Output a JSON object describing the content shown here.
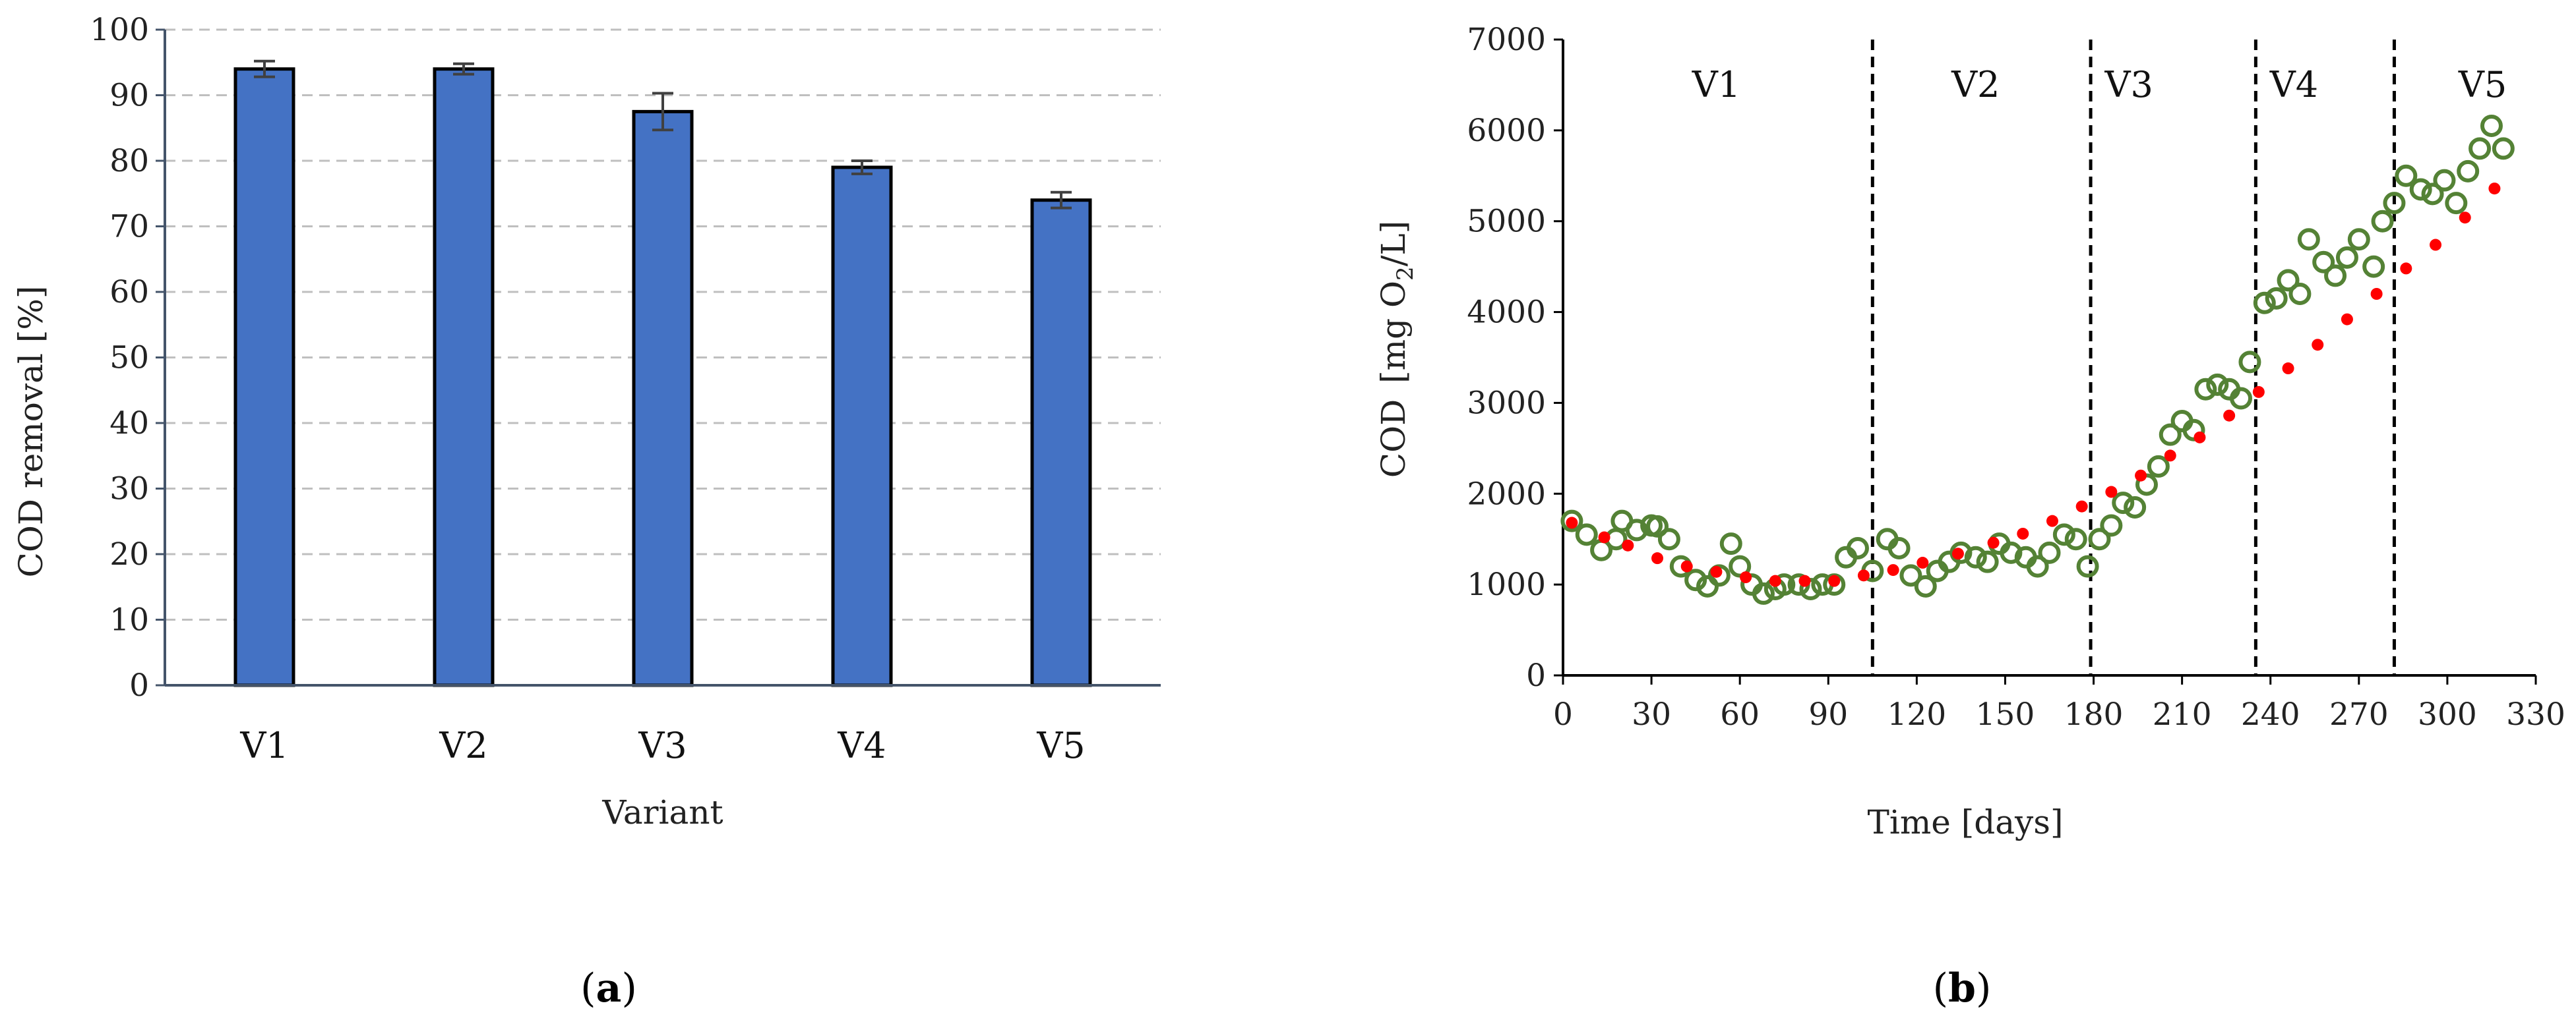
{
  "panels": {
    "a": {
      "label_open": "(",
      "label_letter": "a",
      "label_close": ")"
    },
    "b": {
      "label_open": "(",
      "label_letter": "b",
      "label_close": ")"
    }
  },
  "chart_data": [
    {
      "type": "bar",
      "title": "",
      "xlabel": "Variant",
      "ylabel": "COD removal [%]",
      "categories": [
        "V1",
        "V2",
        "V3",
        "V4",
        "V5"
      ],
      "values": [
        94,
        94,
        87.5,
        79,
        74
      ],
      "error": [
        1.2,
        0.8,
        2.8,
        1.0,
        1.2
      ],
      "ylim": [
        0,
        100
      ],
      "yticks": [
        0,
        10,
        20,
        30,
        40,
        50,
        60,
        70,
        80,
        90,
        100
      ],
      "grid": true,
      "colors": {
        "bar": "#4472C4",
        "bar_edge": "#000000",
        "error": "#404040",
        "grid": "#BFBFBF",
        "axis": "#44546A"
      }
    },
    {
      "type": "scatter",
      "title": "",
      "xlabel": "Time [days]",
      "ylabel_main": "COD",
      "ylabel_unit_open": "[mg O",
      "ylabel_sub": "2",
      "ylabel_unit_close": "/L]",
      "xlim": [
        0,
        330
      ],
      "ylim": [
        0,
        7000
      ],
      "xticks": [
        0,
        30,
        60,
        90,
        120,
        150,
        180,
        210,
        240,
        270,
        300,
        330
      ],
      "yticks": [
        0,
        1000,
        2000,
        3000,
        4000,
        5000,
        6000,
        7000
      ],
      "grid": false,
      "dividers": [
        105,
        179,
        235,
        282
      ],
      "phase_labels": [
        {
          "text": "V1",
          "x": 52
        },
        {
          "text": "V2",
          "x": 140
        },
        {
          "text": "V3",
          "x": 192
        },
        {
          "text": "V4",
          "x": 248
        },
        {
          "text": "V5",
          "x": 312
        }
      ],
      "phase_label_y": 6500,
      "series": [
        {
          "marker": "open-circle",
          "color": "#548235",
          "x": [
            3,
            8,
            13,
            18,
            20,
            25,
            30,
            32,
            36,
            40,
            45,
            49,
            53,
            57,
            60,
            64,
            68,
            72,
            75,
            80,
            84,
            88,
            92,
            96,
            100,
            105,
            110,
            114,
            118,
            123,
            127,
            131,
            135,
            140,
            144,
            148,
            152,
            157,
            161,
            165,
            170,
            174,
            178,
            182,
            186,
            190,
            194,
            198,
            202,
            206,
            210,
            214,
            218,
            222,
            226,
            230,
            233,
            238,
            242,
            246,
            250,
            253,
            258,
            262,
            266,
            270,
            275,
            278,
            282,
            286,
            291,
            295,
            299,
            303,
            307,
            311,
            315,
            319
          ],
          "y": [
            1700,
            1550,
            1380,
            1500,
            1700,
            1600,
            1650,
            1640,
            1500,
            1200,
            1050,
            980,
            1100,
            1450,
            1200,
            1000,
            900,
            950,
            1000,
            1000,
            950,
            1000,
            1000,
            1300,
            1400,
            1150,
            1500,
            1400,
            1100,
            980,
            1150,
            1250,
            1350,
            1300,
            1250,
            1450,
            1350,
            1300,
            1200,
            1350,
            1550,
            1500,
            1200,
            1500,
            1650,
            1900,
            1850,
            2100,
            2300,
            2650,
            2800,
            2700,
            3150,
            3200,
            3150,
            3050,
            3450,
            4100,
            4150,
            4350,
            4200,
            4800,
            4550,
            4400,
            4600,
            4800,
            4500,
            5000,
            5200,
            5500,
            5350,
            5300,
            5450,
            5200,
            5550,
            5800,
            6050,
            5800
          ]
        },
        {
          "marker": "dot",
          "color": "#FF0000",
          "x": [
            3,
            14,
            22,
            32,
            42,
            52,
            62,
            72,
            82,
            92,
            102,
            112,
            122,
            134,
            146,
            156,
            166,
            176,
            186,
            196,
            206,
            216,
            226,
            236,
            246,
            256,
            266,
            276,
            286,
            296,
            306,
            316
          ],
          "y": [
            1680,
            1520,
            1430,
            1290,
            1200,
            1140,
            1080,
            1040,
            1040,
            1040,
            1100,
            1160,
            1240,
            1340,
            1460,
            1560,
            1700,
            1860,
            2020,
            2200,
            2420,
            2620,
            2860,
            3120,
            3380,
            3640,
            3920,
            4200,
            4480,
            4740,
            5040,
            5360
          ]
        }
      ]
    }
  ]
}
